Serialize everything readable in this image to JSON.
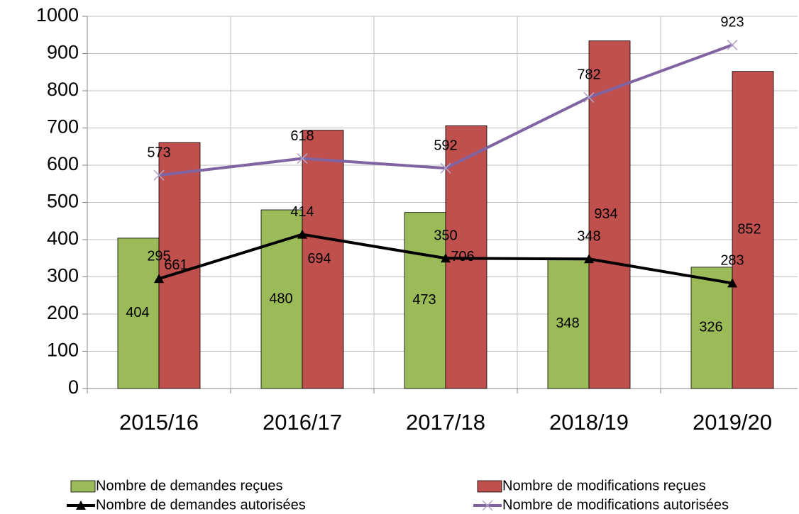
{
  "chart_data": {
    "type": "bar",
    "categories": [
      "2015/16",
      "2016/17",
      "2017/18",
      "2018/19",
      "2019/20"
    ],
    "series": [
      {
        "name": "Nombre de demandes reçues",
        "type": "bar",
        "color": "#9bbb59",
        "values": [
          404,
          480,
          473,
          348,
          326
        ]
      },
      {
        "name": "Nombre de modifications reçues",
        "type": "bar",
        "color": "#c0504d",
        "values": [
          661,
          694,
          706,
          934,
          852
        ]
      },
      {
        "name": "Nombre de demandes autorisées",
        "type": "line",
        "marker": "triangle",
        "color": "#000000",
        "values": [
          295,
          414,
          350,
          348,
          283
        ]
      },
      {
        "name": "Nombre de modifications autorisées",
        "type": "line",
        "marker": "x",
        "color": "#8064a2",
        "values": [
          573,
          618,
          592,
          782,
          923
        ]
      }
    ],
    "ylim": [
      0,
      1000
    ],
    "yticks": [
      0,
      100,
      200,
      300,
      400,
      500,
      600,
      700,
      800,
      900,
      1000
    ],
    "grid": true,
    "legend": "bottom"
  }
}
